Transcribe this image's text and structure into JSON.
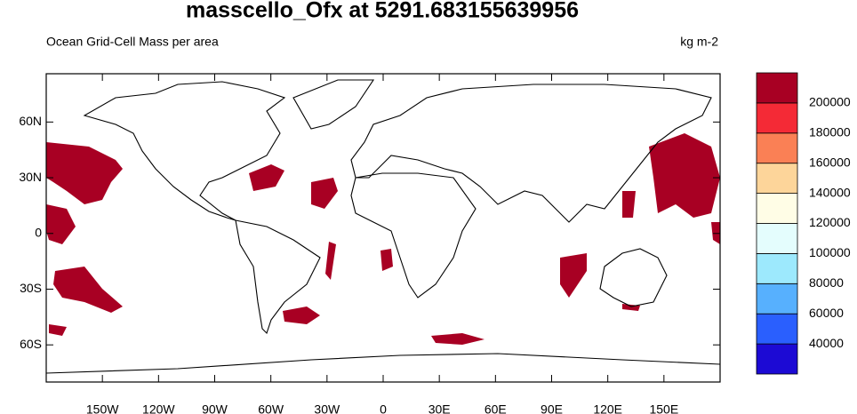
{
  "chart_data": {
    "type": "map",
    "title": "masscello_Ofx at 5291.683155639956",
    "subtitle": "Ocean Grid-Cell Mass per area",
    "units": "kg m-2",
    "xlim": [
      -180,
      180
    ],
    "ylim": [
      -80,
      86
    ],
    "xticks": [
      {
        "value": -150,
        "label": "150W"
      },
      {
        "value": -120,
        "label": "120W"
      },
      {
        "value": -90,
        "label": "90W"
      },
      {
        "value": -60,
        "label": "60W"
      },
      {
        "value": -30,
        "label": "30W"
      },
      0,
      {
        "value": 30,
        "label": "30E"
      },
      {
        "value": 60,
        "label": "60E"
      },
      {
        "value": 90,
        "label": "90E"
      },
      {
        "value": 120,
        "label": "120E"
      },
      {
        "value": 150,
        "label": "150E"
      }
    ],
    "yticks": [
      {
        "value": -60,
        "label": "60S"
      },
      {
        "value": -30,
        "label": "30S"
      },
      0,
      {
        "value": 30,
        "label": "30N"
      },
      {
        "value": 60,
        "label": "60N"
      }
    ],
    "colorbar": {
      "levels": [
        40000,
        60000,
        80000,
        100000,
        120000,
        140000,
        160000,
        180000,
        200000
      ],
      "colors": [
        "#1c0ad4",
        "#2a5ffe",
        "#57b0fe",
        "#9de9fd",
        "#e4fdfd",
        "#fffde6",
        "#fdd59a",
        "#fa8055",
        "#f42a36",
        "#a80023"
      ]
    }
  }
}
